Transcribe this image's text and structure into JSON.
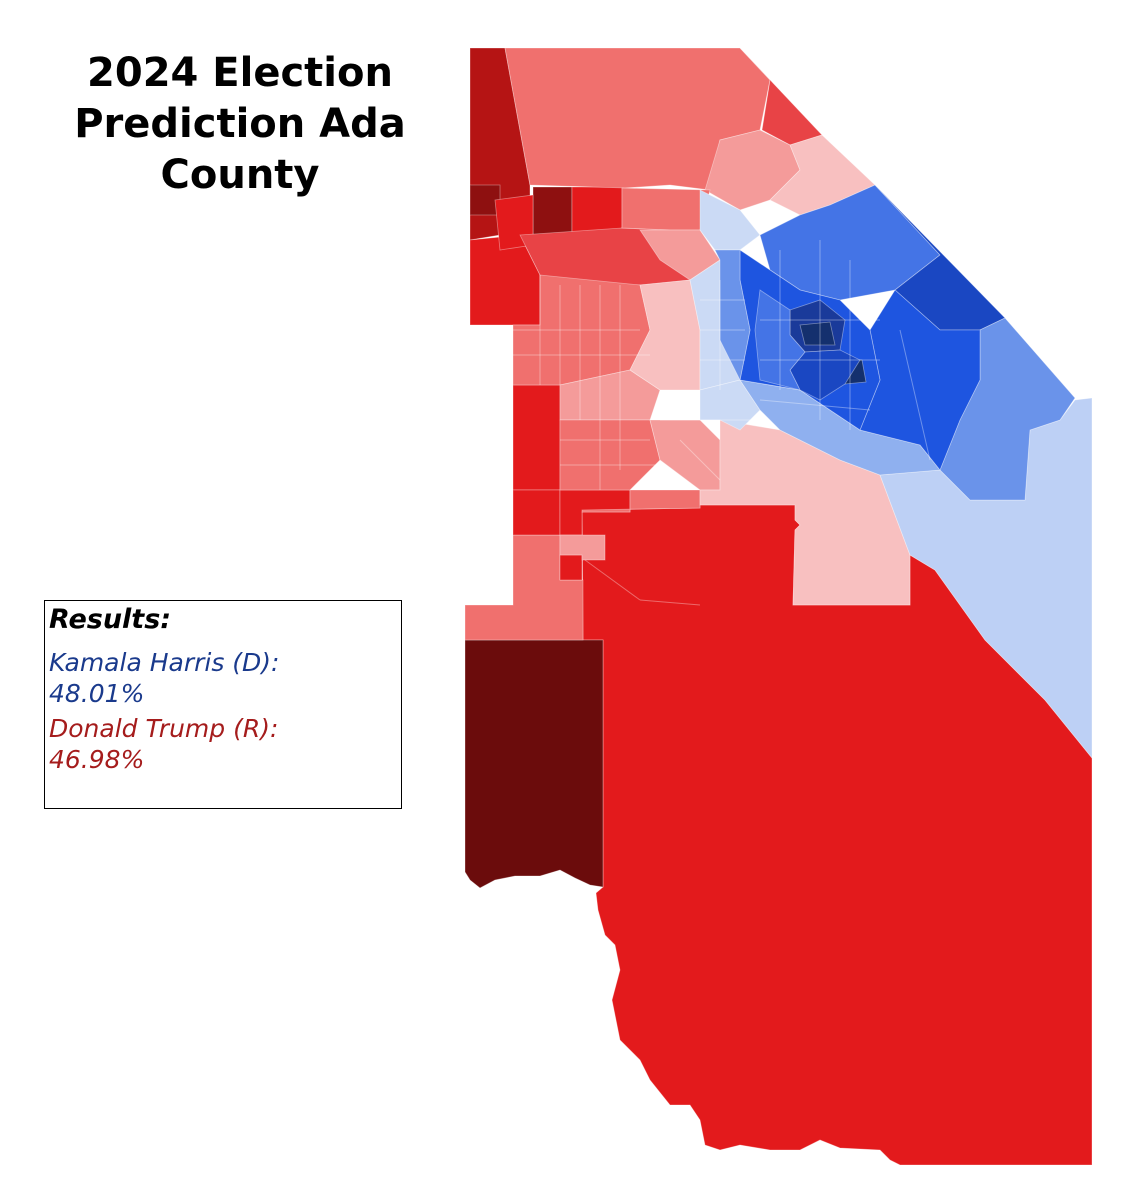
{
  "title": "2024 Election Prediction Ada County",
  "title_lines": [
    "2024 Election",
    "Prediction Ada",
    "County"
  ],
  "legend": {
    "heading": "Results:",
    "candidates": [
      {
        "name": "Kamala Harris (D):",
        "percent": "48.01%",
        "color": "#1a3a8c"
      },
      {
        "name": "Donald Trump (R):",
        "percent": "46.98%",
        "color": "#a51c1c"
      }
    ]
  },
  "colors": {
    "r_darkest": "#6b0c0c",
    "r_darker": "#8e1010",
    "r_dark": "#b51414",
    "r_strong": "#e31a1c",
    "r_medium": "#e84346",
    "r_lean": "#f0706e",
    "r_light": "#f49b9a",
    "r_tilt": "#f8c0c0",
    "d_tilt": "#cbdaf5",
    "d_light": "#bdd0f5",
    "d_lean": "#8fb0ef",
    "d_medium": "#6a93ea",
    "d_strong": "#4474e6",
    "d_safe": "#1e55e0",
    "d_dark": "#1a47c2",
    "d_darker": "#1a3a9a",
    "d_darkest": "#14306e"
  }
}
